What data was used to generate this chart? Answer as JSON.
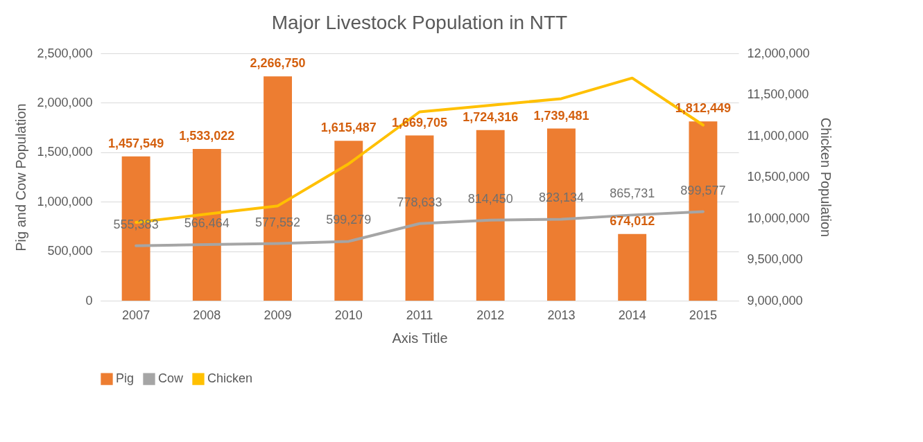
{
  "chart_data": {
    "type": "bar",
    "title": "Major Livestock Population in NTT",
    "xlabel": "Axis Title",
    "ylabel": "Pig and Cow Population",
    "y2label": "Chicken Population",
    "categories": [
      "2007",
      "2008",
      "2009",
      "2010",
      "2011",
      "2012",
      "2013",
      "2014",
      "2015"
    ],
    "series": [
      {
        "name": "Pig",
        "color": "#ed7d31",
        "values": [
          1457549,
          1533022,
          2266750,
          1615487,
          1669705,
          1724316,
          1739481,
          674012,
          1812449
        ],
        "value_labels": [
          "1,457,549",
          "1,533,022",
          "2,266,750",
          "1,615,487",
          "1,669,705",
          "1,724,316",
          "1,739,481",
          "674,012",
          "1,812,449"
        ]
      },
      {
        "name": "Cow",
        "type": "line",
        "color": "#a5a5a5",
        "values": [
          555383,
          566464,
          577552,
          599279,
          778633,
          814450,
          823134,
          865731,
          899577
        ],
        "value_labels": [
          "555,383",
          "566,464",
          "577,552",
          "599,279",
          "778,633",
          "814,450",
          "823,134",
          "865,731",
          "899,577"
        ]
      },
      {
        "name": "Chicken",
        "type": "line",
        "axis": "y2",
        "color": "#ffc000",
        "values": [
          9950000,
          10050000,
          10150000,
          10660000,
          11290000,
          11370000,
          11450000,
          11700000,
          11130000
        ]
      }
    ],
    "ylim": [
      0,
      2500000
    ],
    "yticks": [
      0,
      {
        "value": 500000,
        "label": "500,000"
      },
      {
        "value": 1000000,
        "label": "1,000,000"
      },
      {
        "value": 1500000,
        "label": "1,500,000"
      },
      {
        "value": 2000000,
        "label": "2,000,000"
      },
      {
        "value": 2500000,
        "label": "2,500,000"
      }
    ],
    "y2lim": [
      9000000,
      12000000
    ],
    "y2ticks": [
      {
        "value": 9000000,
        "label": "9,000,000"
      },
      {
        "value": 9500000,
        "label": "9,500,000"
      },
      {
        "value": 10000000,
        "label": "10,000,000"
      },
      {
        "value": 10500000,
        "label": "10,500,000"
      },
      {
        "value": 11000000,
        "label": "11,000,000"
      },
      {
        "value": 11500000,
        "label": "11,500,000"
      },
      {
        "value": 12000000,
        "label": "12,000,000"
      }
    ],
    "grid": "y",
    "legend": "bottom",
    "marker": "none",
    "line_style": "solid"
  }
}
